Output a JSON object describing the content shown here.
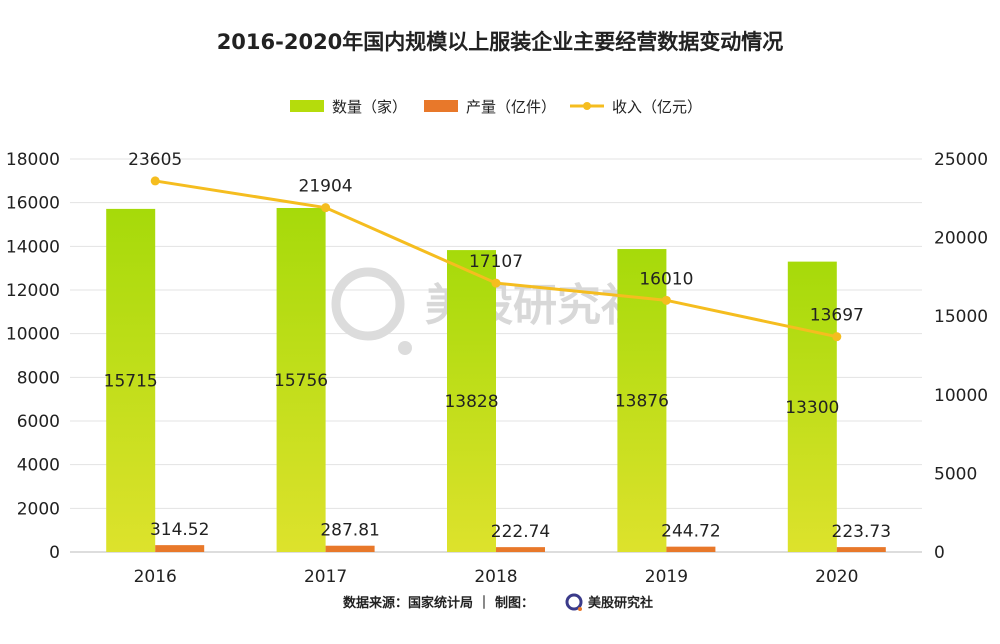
{
  "chart_data": {
    "type": "bar",
    "title": "2016-2020年国内规模以上服装企业主要经营数据变动情况",
    "categories": [
      "2016",
      "2017",
      "2018",
      "2019",
      "2020"
    ],
    "series": [
      {
        "name": "数量（家）",
        "type": "bar",
        "axis": "left",
        "color": "#b5dc0c",
        "values": [
          15715,
          15756,
          13828,
          13876,
          13300
        ],
        "labels": [
          "15715",
          "15756",
          "13828",
          "13876",
          "13300"
        ]
      },
      {
        "name": "产量（亿件）",
        "type": "bar",
        "axis": "left",
        "color": "#e8782a",
        "values": [
          314.52,
          287.81,
          222.74,
          244.72,
          223.73
        ],
        "labels": [
          "314.52",
          "287.81",
          "222.74",
          "244.72",
          "223.73"
        ]
      },
      {
        "name": "收入（亿元）",
        "type": "line",
        "axis": "right",
        "color": "#f5bd1f",
        "values": [
          23605,
          21904,
          17107,
          16010,
          13697
        ],
        "labels": [
          "23605",
          "21904",
          "17107",
          "16010",
          "13697"
        ]
      }
    ],
    "y_left": {
      "min": 0,
      "max": 18000,
      "step": 2000
    },
    "y_right": {
      "min": 0,
      "max": 25000,
      "step": 5000
    },
    "grid": true,
    "legend": "top-center"
  },
  "footer": {
    "source_text": "数据来源：国家统计局 ｜ 制图：",
    "brand": "美股研究社"
  },
  "watermark": {
    "text": "美股研究社"
  }
}
